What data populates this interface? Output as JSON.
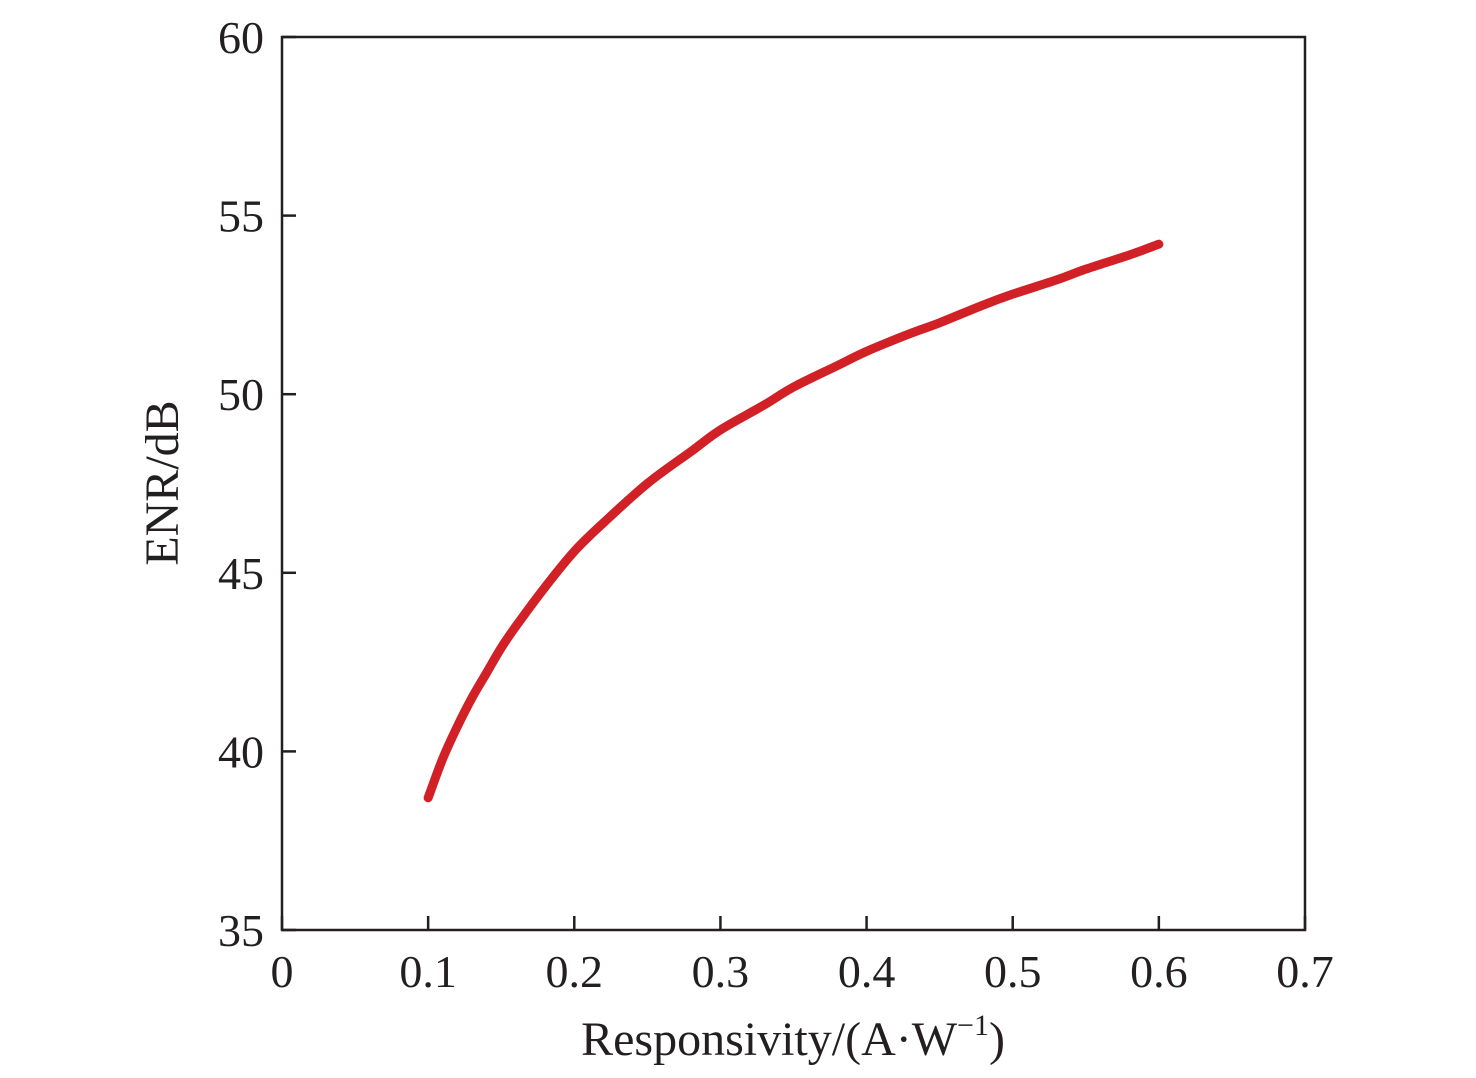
{
  "chart_data": {
    "type": "line",
    "title": "",
    "xlabel": "Responsivity/(A·W",
    "xlabel_superscript": "−1",
    "xlabel_suffix": ")",
    "ylabel": "ENR/dB",
    "xlim": [
      0,
      0.7
    ],
    "ylim": [
      35,
      60
    ],
    "xticks": [
      "0",
      "0.1",
      "0.2",
      "0.3",
      "0.4",
      "0.5",
      "0.6",
      "0.7"
    ],
    "yticks": [
      "35",
      "40",
      "45",
      "50",
      "55",
      "60"
    ],
    "grid": false,
    "legend": "none",
    "series": [
      {
        "color": "#d22027",
        "x": [
          0.1,
          0.11,
          0.12,
          0.13,
          0.14,
          0.15,
          0.16,
          0.18,
          0.2,
          0.22,
          0.25,
          0.28,
          0.3,
          0.33,
          0.35,
          0.38,
          0.4,
          0.43,
          0.45,
          0.48,
          0.5,
          0.53,
          0.55,
          0.58,
          0.6
        ],
        "y": [
          38.7,
          39.8,
          40.7,
          41.5,
          42.2,
          42.9,
          43.5,
          44.6,
          45.6,
          46.4,
          47.5,
          48.4,
          49.0,
          49.7,
          50.2,
          50.8,
          51.2,
          51.7,
          52.0,
          52.5,
          52.8,
          53.2,
          53.5,
          53.9,
          54.2
        ]
      }
    ]
  }
}
